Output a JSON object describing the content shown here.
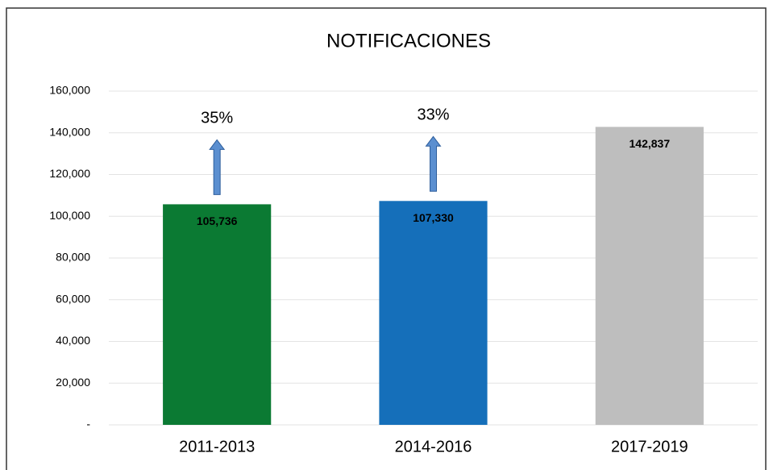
{
  "chart_data": {
    "type": "bar",
    "title": "NOTIFICACIONES",
    "categories": [
      "2011-2013",
      "2014-2016",
      "2017-2019"
    ],
    "values": [
      105736,
      107330,
      142837
    ],
    "value_labels": [
      "105,736",
      "107,330",
      "142,837"
    ],
    "colors": [
      "#0b7a33",
      "#156fba",
      "#bebebe"
    ],
    "annotations": [
      "35%",
      "33%"
    ],
    "annotation_color": "#c0392b",
    "ylim": [
      0,
      160000
    ],
    "yticks": [
      {
        "value": 0,
        "label": "-"
      },
      {
        "value": 20000,
        "label": "20,000"
      },
      {
        "value": 40000,
        "label": "40,000"
      },
      {
        "value": 60000,
        "label": "60,000"
      },
      {
        "value": 80000,
        "label": "80,000"
      },
      {
        "value": 100000,
        "label": "100,000"
      },
      {
        "value": 120000,
        "label": "120,000"
      },
      {
        "value": 140000,
        "label": "140,000"
      },
      {
        "value": 160000,
        "label": "160,000"
      }
    ],
    "grid": true
  }
}
